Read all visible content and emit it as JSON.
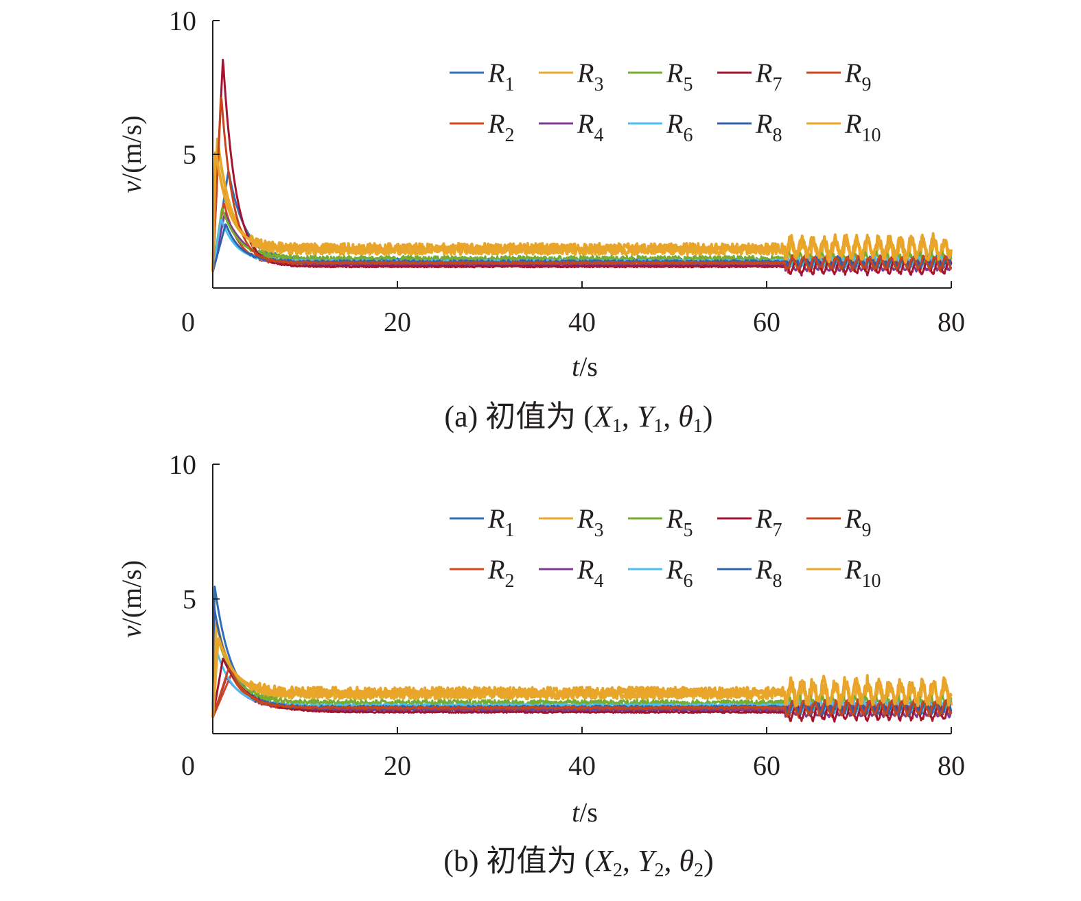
{
  "chart_data": [
    {
      "type": "line",
      "caption": {
        "prefix": "(a) 初值为 (",
        "v1": "X",
        "s1": "1",
        "v2": "Y",
        "s2": "1",
        "v3": "θ",
        "s3": "1",
        "suffix": ")"
      },
      "ylabel": {
        "var": "v",
        "unit": "/(m/s)"
      },
      "xlabel": {
        "var": "t",
        "unit": "/s"
      },
      "xlim": [
        0,
        80
      ],
      "ylim": [
        0,
        10
      ],
      "x_ticks": [
        "0",
        "20",
        "40",
        "60",
        "80"
      ],
      "y_ticks": [
        "5",
        "10"
      ],
      "legend_placement": "top-right",
      "series": [
        {
          "name": "R",
          "sub": "1",
          "color": "#2e6fb7",
          "base": 1.02,
          "init": 4.4,
          "peak_t": 1.7,
          "decay": 1.8,
          "osc": 0.18,
          "late_osc": 0.22
        },
        {
          "name": "R",
          "sub": "2",
          "color": "#d5461f",
          "base": 0.88,
          "init": 3.2,
          "peak_t": 1.2,
          "decay": 1.6,
          "osc": 0.1,
          "late_osc": 0.26
        },
        {
          "name": "R",
          "sub": "3",
          "color": "#e8a82b",
          "base": 1.4,
          "init": 5.6,
          "peak_t": 0.5,
          "decay": 1.5,
          "osc": 0.3,
          "late_osc": 0.4
        },
        {
          "name": "R",
          "sub": "4",
          "color": "#7e3b93",
          "base": 0.86,
          "init": 2.8,
          "peak_t": 1.3,
          "decay": 2.4,
          "osc": 0.05,
          "late_osc": 0.24
        },
        {
          "name": "R",
          "sub": "5",
          "color": "#77ac30",
          "base": 1.1,
          "init": 3.0,
          "peak_t": 1.0,
          "decay": 1.8,
          "osc": 0.2,
          "late_osc": 0.22
        },
        {
          "name": "R",
          "sub": "6",
          "color": "#4dbeee",
          "base": 1.0,
          "init": 2.6,
          "peak_t": 0.9,
          "decay": 1.6,
          "osc": 0.1,
          "late_osc": 0.2
        },
        {
          "name": "R",
          "sub": "7",
          "color": "#a2142f",
          "base": 0.8,
          "init": 8.6,
          "peak_t": 1.1,
          "decay": 1.4,
          "osc": 0.05,
          "late_osc": 0.32
        },
        {
          "name": "R",
          "sub": "8",
          "color": "#2f62ad",
          "base": 0.98,
          "init": 2.4,
          "peak_t": 1.4,
          "decay": 1.6,
          "osc": 0.12,
          "late_osc": 0.24
        },
        {
          "name": "R",
          "sub": "9",
          "color": "#c8441b",
          "base": 0.94,
          "init": 7.3,
          "peak_t": 0.9,
          "decay": 1.3,
          "osc": 0.08,
          "late_osc": 0.26
        },
        {
          "name": "R",
          "sub": "10",
          "color": "#e9a52a",
          "base": 1.5,
          "init": 5.2,
          "peak_t": 0.3,
          "decay": 1.5,
          "osc": 0.34,
          "late_osc": 0.44
        }
      ]
    },
    {
      "type": "line",
      "caption": {
        "prefix": "(b) 初值为 (",
        "v1": "X",
        "s1": "2",
        "v2": "Y",
        "s2": "2",
        "v3": "θ",
        "s3": "2",
        "suffix": ")"
      },
      "ylabel": {
        "var": "v",
        "unit": "/(m/s)"
      },
      "xlabel": {
        "var": "t",
        "unit": "/s"
      },
      "xlim": [
        0,
        80
      ],
      "ylim": [
        0,
        10
      ],
      "x_ticks": [
        "0",
        "20",
        "40",
        "60",
        "80"
      ],
      "y_ticks": [
        "5",
        "10"
      ],
      "legend_placement": "top-right",
      "series": [
        {
          "name": "R",
          "sub": "1",
          "color": "#2e6fb7",
          "base": 1.0,
          "init": 5.5,
          "peak_t": 0.2,
          "decay": 1.8,
          "osc": 0.12,
          "late_osc": 0.26
        },
        {
          "name": "R",
          "sub": "2",
          "color": "#d5461f",
          "base": 0.92,
          "init": 2.2,
          "peak_t": 2.0,
          "decay": 1.8,
          "osc": 0.1,
          "late_osc": 0.3
        },
        {
          "name": "R",
          "sub": "3",
          "color": "#e8a82b",
          "base": 1.45,
          "init": 4.2,
          "peak_t": 0.4,
          "decay": 1.6,
          "osc": 0.32,
          "late_osc": 0.42
        },
        {
          "name": "R",
          "sub": "4",
          "color": "#7e3b93",
          "base": 0.88,
          "init": 2.1,
          "peak_t": 1.5,
          "decay": 2.4,
          "osc": 0.05,
          "late_osc": 0.28
        },
        {
          "name": "R",
          "sub": "5",
          "color": "#77ac30",
          "base": 1.15,
          "init": 3.5,
          "peak_t": 0.6,
          "decay": 2.0,
          "osc": 0.2,
          "late_osc": 0.24
        },
        {
          "name": "R",
          "sub": "6",
          "color": "#4dbeee",
          "base": 1.05,
          "init": 3.0,
          "peak_t": 0.5,
          "decay": 1.8,
          "osc": 0.1,
          "late_osc": 0.24
        },
        {
          "name": "R",
          "sub": "7",
          "color": "#a2142f",
          "base": 0.8,
          "init": 2.8,
          "peak_t": 1.1,
          "decay": 2.6,
          "osc": 0.05,
          "late_osc": 0.34
        },
        {
          "name": "R",
          "sub": "8",
          "color": "#2f62ad",
          "base": 0.98,
          "init": 4.8,
          "peak_t": 0.1,
          "decay": 1.8,
          "osc": 0.12,
          "late_osc": 0.28
        },
        {
          "name": "R",
          "sub": "9",
          "color": "#c8441b",
          "base": 0.96,
          "init": 2.5,
          "peak_t": 1.8,
          "decay": 1.8,
          "osc": 0.08,
          "late_osc": 0.3
        },
        {
          "name": "R",
          "sub": "10",
          "color": "#e9a52a",
          "base": 1.55,
          "init": 3.6,
          "peak_t": 0.6,
          "decay": 1.7,
          "osc": 0.36,
          "late_osc": 0.46
        }
      ]
    }
  ]
}
